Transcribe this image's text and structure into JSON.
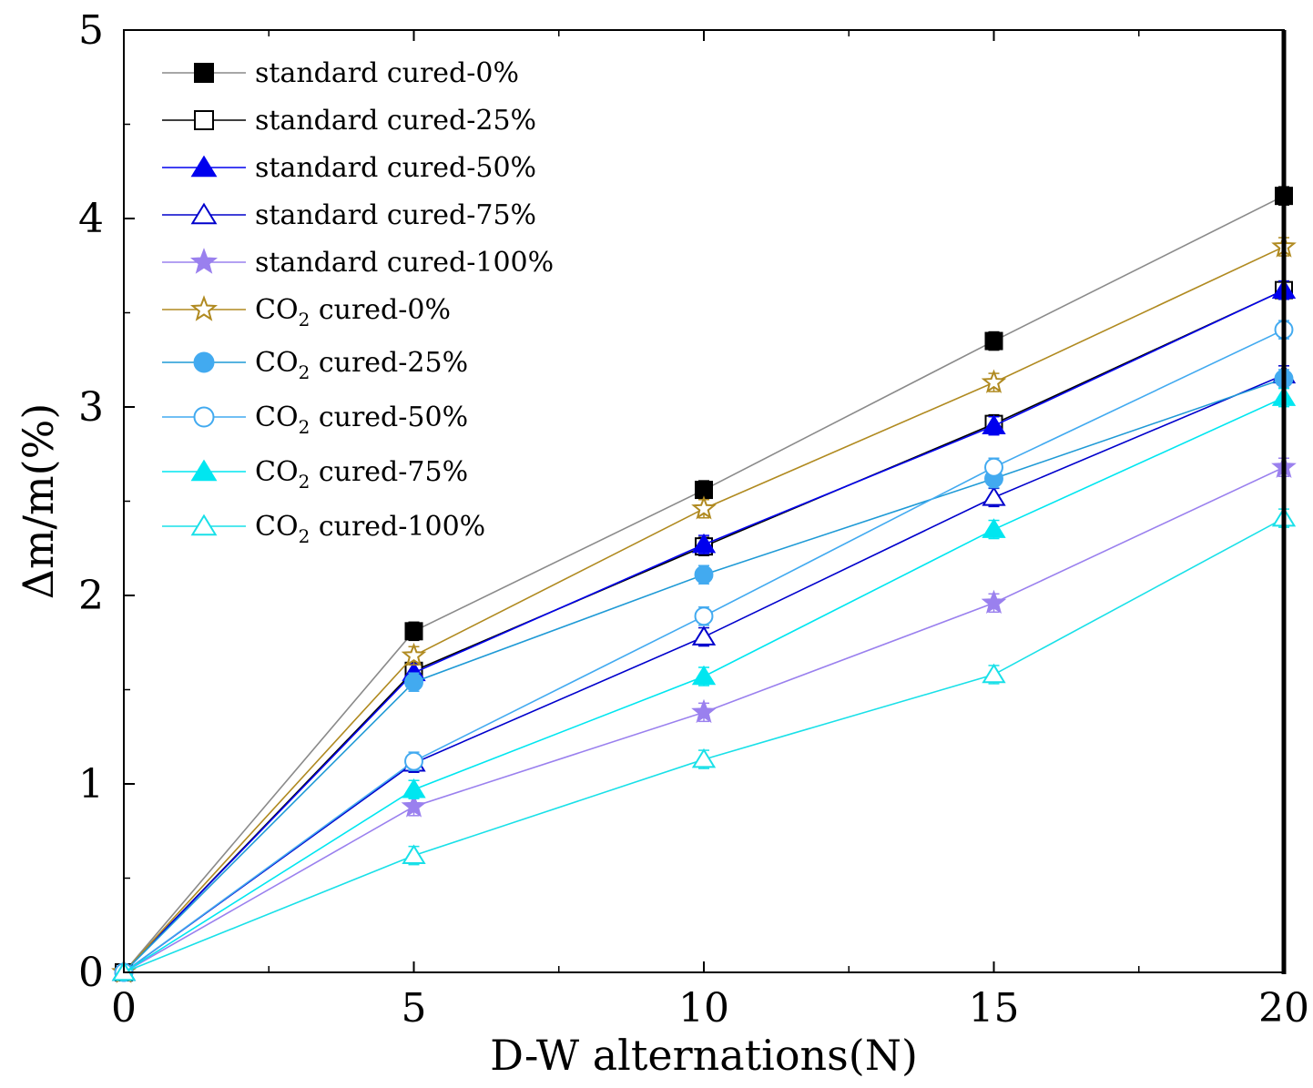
{
  "chart_data": {
    "type": "line",
    "title": "",
    "xlabel": "D-W alternations(N)",
    "ylabel": "Δm/m(%)",
    "xlim": [
      0,
      20
    ],
    "ylim": [
      0,
      5
    ],
    "x": [
      0,
      5,
      10,
      15,
      20
    ],
    "xticks": [
      "0",
      "5",
      "10",
      "15",
      "20"
    ],
    "yticks": [
      "0",
      "1",
      "2",
      "3",
      "4",
      "5"
    ],
    "legend_position": "top-left",
    "series": [
      {
        "name": "standard cured-0%",
        "prefix": "standard cured-0%",
        "sub": "",
        "suffix": "",
        "values": [
          0,
          1.81,
          2.56,
          3.35,
          4.12
        ],
        "color": "#000000",
        "line_color": "#8a8a8a",
        "marker": "square",
        "filled": true
      },
      {
        "name": "standard cured-25%",
        "prefix": "standard cured-25%",
        "sub": "",
        "suffix": "",
        "values": [
          0,
          1.6,
          2.26,
          2.91,
          3.62
        ],
        "color": "#000000",
        "line_color": "#000000",
        "marker": "square",
        "filled": false
      },
      {
        "name": "standard cured-50%",
        "prefix": "standard cured-50%",
        "sub": "",
        "suffix": "",
        "values": [
          0,
          1.59,
          2.27,
          2.9,
          3.62
        ],
        "color": "#0000ee",
        "line_color": "#0000ee",
        "marker": "triangle",
        "filled": true
      },
      {
        "name": "standard cured-75%",
        "prefix": "standard cured-75%",
        "sub": "",
        "suffix": "",
        "values": [
          0,
          1.11,
          1.78,
          2.52,
          3.17
        ],
        "color": "#0000cc",
        "line_color": "#0000cc",
        "marker": "triangle",
        "filled": false
      },
      {
        "name": "standard cured-100%",
        "prefix": "standard cured-100%",
        "sub": "",
        "suffix": "",
        "values": [
          0,
          0.88,
          1.38,
          1.96,
          2.68
        ],
        "color": "#9a80ee",
        "line_color": "#9a80ee",
        "marker": "star",
        "filled": true
      },
      {
        "name": "CO2 cured-0%",
        "prefix": "CO",
        "sub": "2",
        "suffix": " cured-0%",
        "values": [
          0,
          1.68,
          2.46,
          3.13,
          3.85
        ],
        "color": "#b08a20",
        "line_color": "#b08a20",
        "marker": "star",
        "filled": false
      },
      {
        "name": "CO2 cured-25%",
        "prefix": "CO",
        "sub": "2",
        "suffix": " cured-25%",
        "values": [
          0,
          1.54,
          2.11,
          2.62,
          3.15
        ],
        "color": "#42aaf0",
        "line_color": "#1f9ad6",
        "marker": "circle",
        "filled": true
      },
      {
        "name": "CO2 cured-50%",
        "prefix": "CO",
        "sub": "2",
        "suffix": " cured-50%",
        "values": [
          0,
          1.12,
          1.89,
          2.68,
          3.41
        ],
        "color": "#42aaf0",
        "line_color": "#42aaf0",
        "marker": "circle",
        "filled": false
      },
      {
        "name": "CO2 cured-75%",
        "prefix": "CO",
        "sub": "2",
        "suffix": " cured-75%",
        "values": [
          0,
          0.97,
          1.57,
          2.35,
          3.05
        ],
        "color": "#00e6f0",
        "line_color": "#00e6f0",
        "marker": "triangle",
        "filled": true
      },
      {
        "name": "CO2 cured-100%",
        "prefix": "CO",
        "sub": "2",
        "suffix": " cured-100%",
        "values": [
          0,
          0.62,
          1.13,
          1.58,
          2.41
        ],
        "color": "#19e0e8",
        "line_color": "#19e0e8",
        "marker": "triangle",
        "filled": false
      }
    ]
  }
}
